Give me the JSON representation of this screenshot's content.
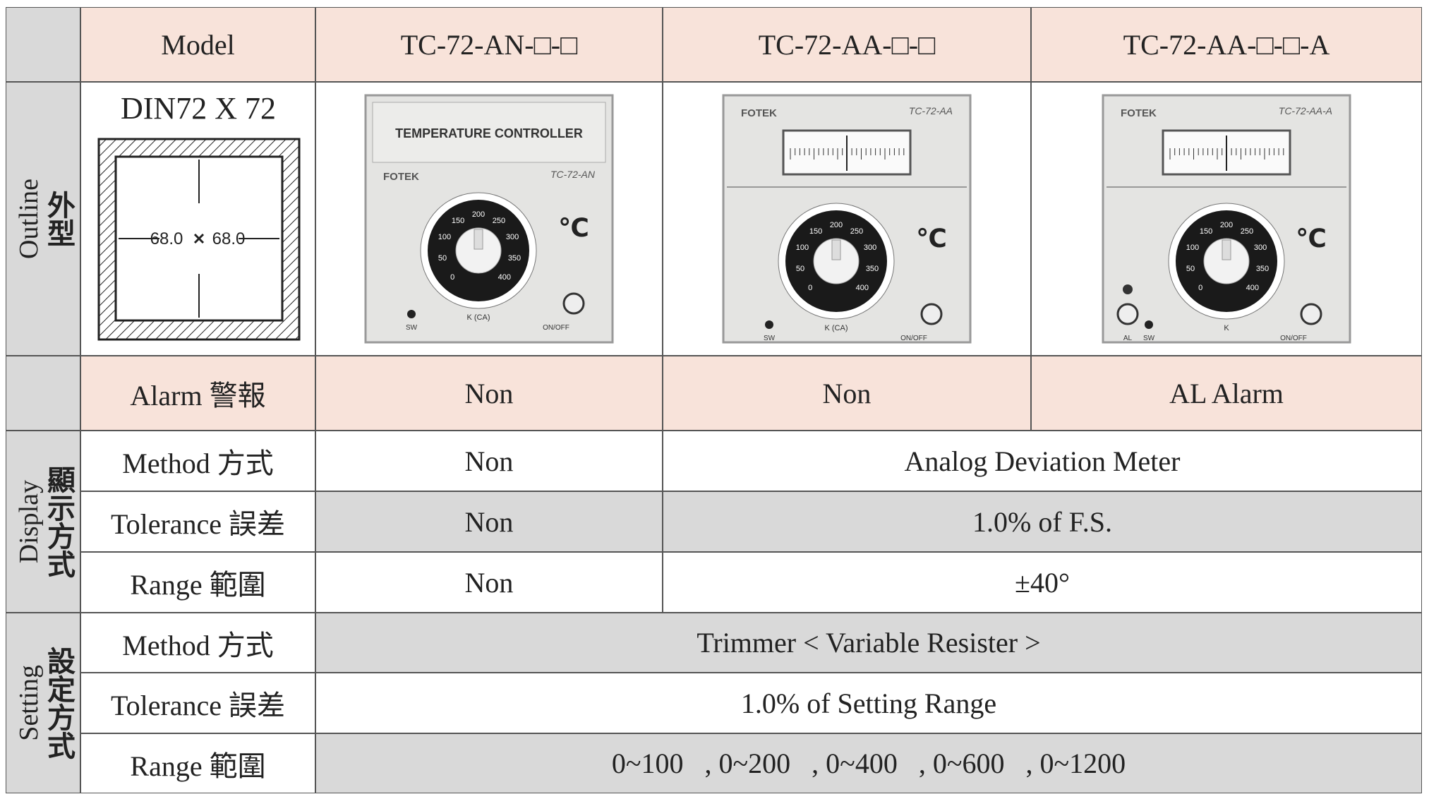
{
  "table": {
    "header": [
      "Model",
      "TC-72-AN-□-□",
      "TC-72-AA-□-□",
      "TC-72-AA-□-□-A"
    ],
    "groups": [
      {
        "en": "Outline",
        "zh": "外型"
      },
      {
        "en": "Display",
        "zh": "顯示方式"
      },
      {
        "en": "Setting",
        "zh": "設定方式"
      }
    ],
    "outline": {
      "title": "DIN72 X 72",
      "dims": [
        "68.0",
        "68.0"
      ]
    },
    "devices": [
      {
        "header": "TEMPERATURE CONTROLLER",
        "brand": "FOTEK",
        "model": "TC-72-AN",
        "unit": "℃",
        "dial": [
          "0",
          "50",
          "100",
          "150",
          "200",
          "250",
          "300",
          "350",
          "400"
        ],
        "dial_label": "K (CA)",
        "switch": "ON/OFF",
        "led": "SW"
      },
      {
        "brand": "FOTEK",
        "model": "TC-72-AA",
        "unit": "℃",
        "dial": [
          "0",
          "50",
          "100",
          "150",
          "200",
          "250",
          "300",
          "350",
          "400"
        ],
        "dial_label": "K (CA)",
        "switch": "ON/OFF",
        "led": "SW"
      },
      {
        "brand": "FOTEK",
        "model": "TC-72-AA-A",
        "unit": "℃",
        "dial": [
          "0",
          "50",
          "100",
          "150",
          "200",
          "250",
          "300",
          "350",
          "400"
        ],
        "dial_label": "K",
        "switch": "ON/OFF",
        "led": "SW",
        "alarm": "AL"
      }
    ],
    "alarm": {
      "label": "Alarm 警報",
      "values": [
        "Non",
        "Non",
        "AL Alarm"
      ]
    },
    "display": [
      {
        "label": "Method 方式",
        "an": "Non",
        "aa": "Analog Deviation Meter"
      },
      {
        "label": "Tolerance 誤差",
        "an": "Non",
        "aa": "1.0% of F.S."
      },
      {
        "label": "Range 範圍",
        "an": "Non",
        "aa": "±40°"
      }
    ],
    "setting": [
      {
        "label": "Method 方式",
        "value": "Trimmer < Variable Resister >"
      },
      {
        "label": "Tolerance 誤差",
        "value": "1.0% of Setting Range"
      },
      {
        "label": "Range 範圍",
        "value": "0~100   , 0~200   , 0~400   , 0~600   , 0~1200"
      }
    ]
  }
}
